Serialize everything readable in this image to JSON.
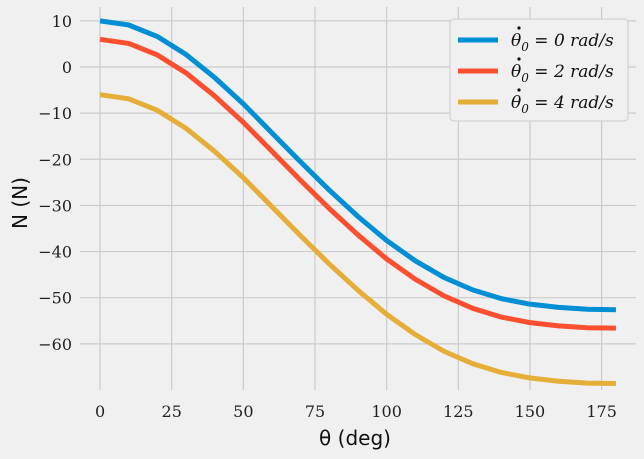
{
  "chart_data": {
    "type": "line",
    "title": "",
    "xlabel": "θ (deg)",
    "ylabel": "N (N)",
    "xlim": [
      -7,
      187
    ],
    "ylim": [
      -70,
      13
    ],
    "xticks": [
      0,
      25,
      50,
      75,
      100,
      125,
      150,
      175
    ],
    "yticks": [
      10,
      0,
      -10,
      -20,
      -30,
      -40,
      -50,
      -60
    ],
    "ytick_labels": [
      "10",
      "0",
      "−10",
      "−20",
      "−30",
      "−40",
      "−50",
      "−60"
    ],
    "grid": true,
    "legend_position": "top-right",
    "x": [
      0,
      10,
      20,
      30,
      40,
      50,
      60,
      70,
      80,
      90,
      100,
      110,
      120,
      130,
      140,
      150,
      160,
      170,
      180
    ],
    "series": [
      {
        "name": "θ̇₀ = 0 rad/s",
        "legend_sub": "0",
        "legend_rest": " = 0 rad/s",
        "color": "#008fd5",
        "values": [
          10.0,
          9.1,
          6.6,
          2.7,
          -2.3,
          -8.0,
          -14.3,
          -20.6,
          -26.7,
          -32.4,
          -37.6,
          -42.0,
          -45.6,
          -48.3,
          -50.2,
          -51.4,
          -52.1,
          -52.5,
          -52.6
        ]
      },
      {
        "name": "θ̇₀ = 2 rad/s",
        "legend_sub": "0",
        "legend_rest": " = 2 rad/s",
        "color": "#fc4f30",
        "values": [
          6.0,
          5.1,
          2.6,
          -1.3,
          -6.3,
          -12.0,
          -18.3,
          -24.6,
          -30.7,
          -36.4,
          -41.6,
          -46.0,
          -49.6,
          -52.3,
          -54.2,
          -55.4,
          -56.1,
          -56.5,
          -56.6
        ]
      },
      {
        "name": "θ̇₀ = 4 rad/s",
        "legend_sub": "0",
        "legend_rest": " = 4 rad/s",
        "color": "#e5ae38",
        "values": [
          -6.0,
          -6.9,
          -9.4,
          -13.3,
          -18.3,
          -24.0,
          -30.3,
          -36.6,
          -42.7,
          -48.4,
          -53.6,
          -58.0,
          -61.6,
          -64.3,
          -66.2,
          -67.4,
          -68.1,
          -68.5,
          -68.6
        ]
      }
    ]
  }
}
